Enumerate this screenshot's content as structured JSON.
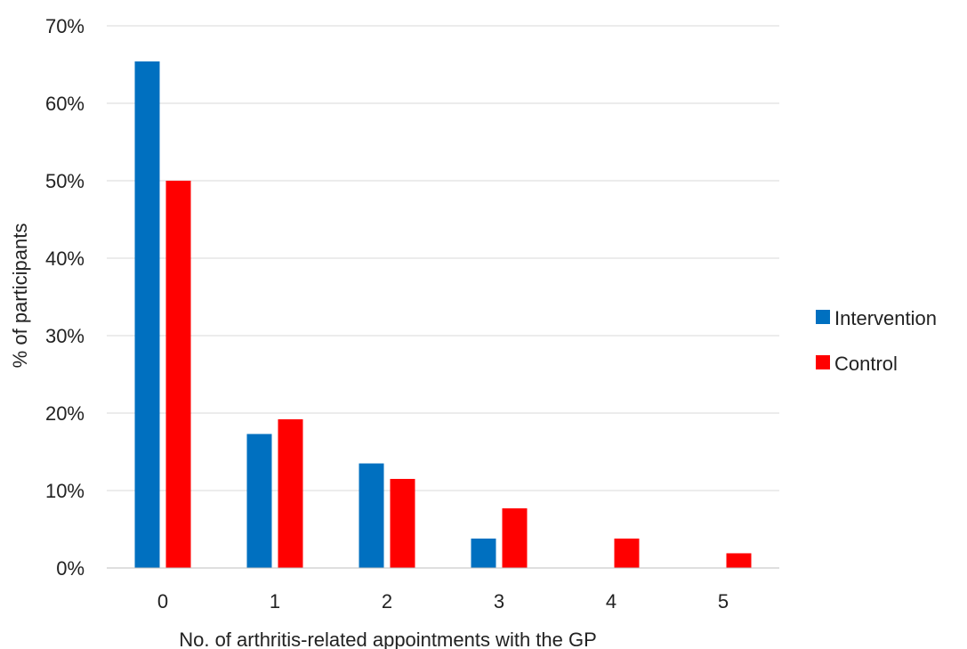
{
  "chart_data": {
    "type": "bar",
    "title": "",
    "xlabel": "No. of arthritis-related appointments with the GP",
    "ylabel": "% of participants",
    "categories": [
      "0",
      "1",
      "2",
      "3",
      "4",
      "5"
    ],
    "series": [
      {
        "name": "Intervention",
        "color": "#0070c0",
        "values": [
          65.4,
          17.3,
          13.5,
          3.8,
          0,
          0
        ]
      },
      {
        "name": "Control",
        "color": "#ff0000",
        "values": [
          50.0,
          19.2,
          11.5,
          7.7,
          3.8,
          1.9
        ]
      }
    ],
    "ylim": [
      0,
      70
    ],
    "yticks": [
      "0%",
      "10%",
      "20%",
      "30%",
      "40%",
      "50%",
      "60%",
      "70%"
    ],
    "grid": true,
    "legend_position": "right"
  }
}
